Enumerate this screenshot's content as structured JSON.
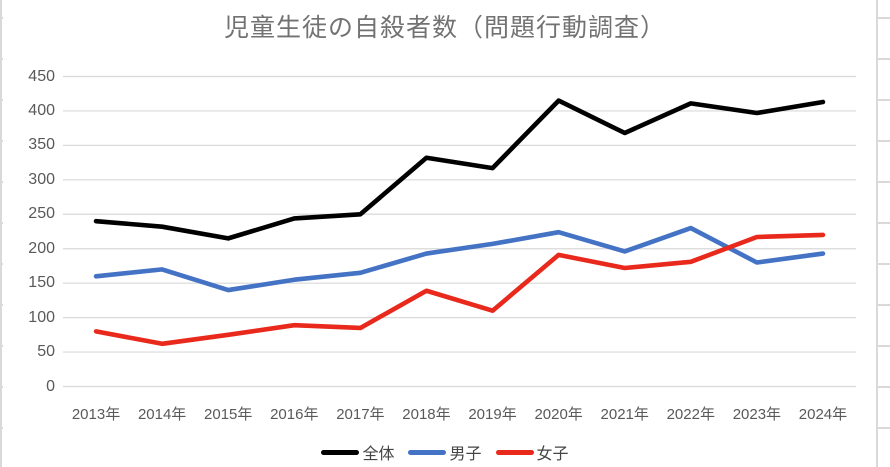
{
  "chart_data": {
    "type": "line",
    "title": "児童生徒の自殺者数（問題行動調査）",
    "categories": [
      "2013年",
      "2014年",
      "2015年",
      "2016年",
      "2017年",
      "2018年",
      "2019年",
      "2020年",
      "2021年",
      "2022年",
      "2023年",
      "2024年"
    ],
    "series": [
      {
        "name": "全体",
        "color": "#000000",
        "values": [
          240,
          232,
          215,
          244,
          250,
          332,
          317,
          415,
          368,
          411,
          397,
          413
        ]
      },
      {
        "name": "男子",
        "color": "#4472c4",
        "values": [
          160,
          170,
          140,
          155,
          165,
          193,
          207,
          224,
          196,
          230,
          180,
          193
        ]
      },
      {
        "name": "女子",
        "color": "#e8291c",
        "values": [
          80,
          62,
          75,
          89,
          85,
          139,
          110,
          191,
          172,
          181,
          217,
          220
        ]
      }
    ],
    "ylim": [
      0,
      450
    ],
    "ytick_step": 50,
    "yticks": [
      "0",
      "50",
      "100",
      "150",
      "200",
      "250",
      "300",
      "350",
      "400",
      "450"
    ],
    "grid": true,
    "legend_position": "bottom",
    "xlabel": "",
    "ylabel": ""
  },
  "colors": {
    "gridline": "#d9d9d9",
    "worksheet_line": "#d9d9d9",
    "axis_text": "#595959",
    "title_text": "#727272",
    "legend_text": "#454545"
  }
}
